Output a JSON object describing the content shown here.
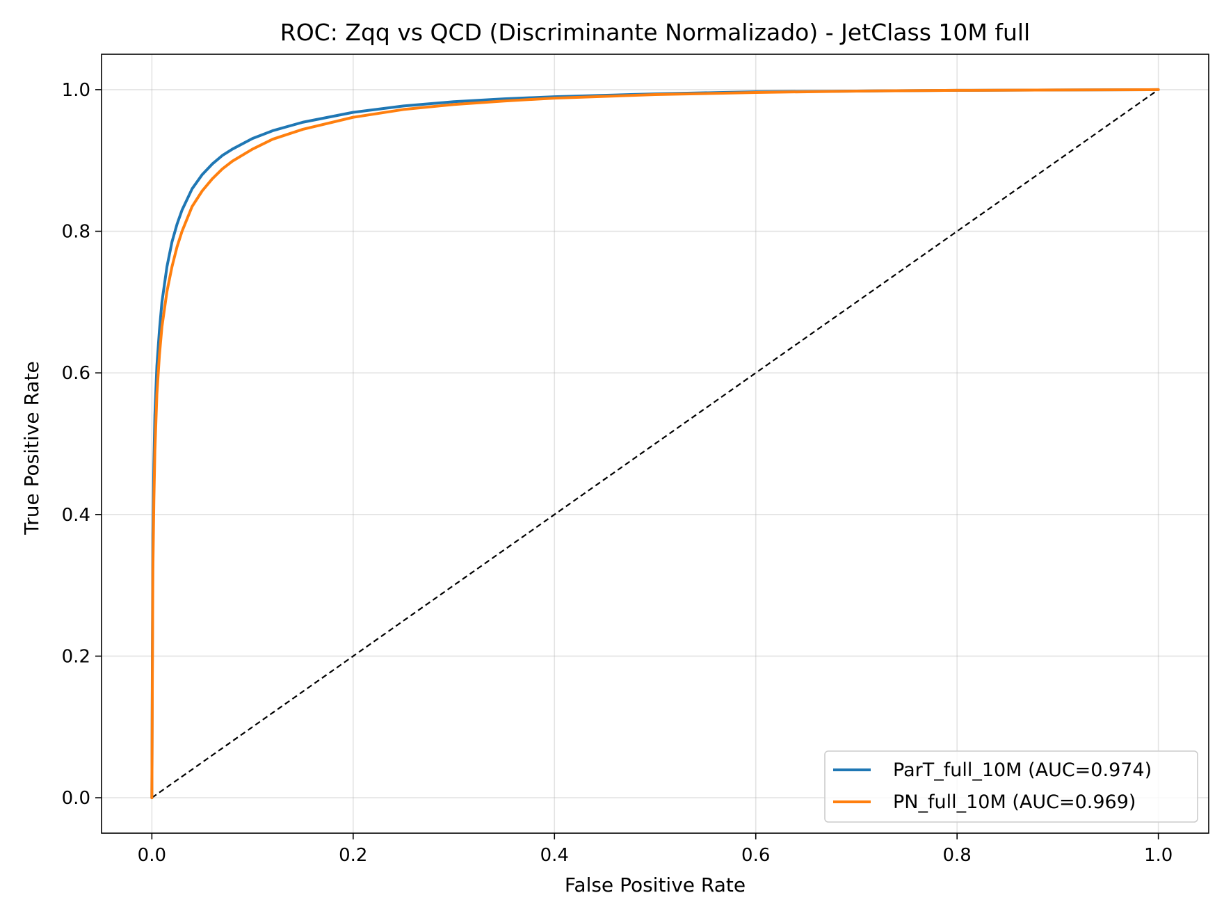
{
  "chart_data": {
    "type": "line",
    "title": "ROC: Zqq vs QCD (Discriminante Normalizado) - JetClass 10M full",
    "xlabel": "False Positive Rate",
    "ylabel": "True Positive Rate",
    "xlim": [
      -0.05,
      1.05
    ],
    "ylim": [
      -0.05,
      1.05
    ],
    "xticks": [
      0.0,
      0.2,
      0.4,
      0.6,
      0.8,
      1.0
    ],
    "xtick_labels": [
      "0.0",
      "0.2",
      "0.4",
      "0.6",
      "0.8",
      "1.0"
    ],
    "yticks": [
      0.0,
      0.2,
      0.4,
      0.6,
      0.8,
      1.0
    ],
    "ytick_labels": [
      "0.0",
      "0.2",
      "0.4",
      "0.6",
      "0.8",
      "1.0"
    ],
    "grid": true,
    "legend_position": "lower-right",
    "series": [
      {
        "name": "ParT_full_10M (AUC=0.974)",
        "color": "#1f77b4",
        "x": [
          0,
          0.0005,
          0.001,
          0.002,
          0.003,
          0.005,
          0.0075,
          0.01,
          0.015,
          0.02,
          0.025,
          0.03,
          0.04,
          0.05,
          0.06,
          0.07,
          0.08,
          0.1,
          0.12,
          0.15,
          0.2,
          0.25,
          0.3,
          0.35,
          0.4,
          0.5,
          0.6,
          0.7,
          0.8,
          0.9,
          1.0
        ],
        "y": [
          0,
          0.2,
          0.37,
          0.47,
          0.54,
          0.61,
          0.66,
          0.7,
          0.75,
          0.785,
          0.81,
          0.83,
          0.86,
          0.88,
          0.895,
          0.907,
          0.916,
          0.931,
          0.942,
          0.954,
          0.968,
          0.977,
          0.983,
          0.987,
          0.99,
          0.994,
          0.997,
          0.998,
          0.999,
          0.9995,
          1.0
        ]
      },
      {
        "name": "PN_full_10M (AUC=0.969)",
        "color": "#ff7f0e",
        "x": [
          0,
          0.0005,
          0.001,
          0.002,
          0.003,
          0.005,
          0.0075,
          0.01,
          0.015,
          0.02,
          0.025,
          0.03,
          0.04,
          0.05,
          0.06,
          0.07,
          0.08,
          0.1,
          0.12,
          0.15,
          0.2,
          0.25,
          0.3,
          0.35,
          0.4,
          0.5,
          0.6,
          0.7,
          0.8,
          0.9,
          1.0
        ],
        "y": [
          0,
          0.17,
          0.32,
          0.42,
          0.49,
          0.57,
          0.625,
          0.665,
          0.715,
          0.75,
          0.778,
          0.8,
          0.835,
          0.857,
          0.874,
          0.888,
          0.899,
          0.916,
          0.93,
          0.944,
          0.961,
          0.972,
          0.979,
          0.984,
          0.988,
          0.993,
          0.996,
          0.998,
          0.999,
          0.9995,
          1.0
        ]
      }
    ],
    "reference_line": {
      "x": [
        0,
        1
      ],
      "y": [
        0,
        1
      ],
      "color": "#000000",
      "style": "dashed"
    }
  }
}
